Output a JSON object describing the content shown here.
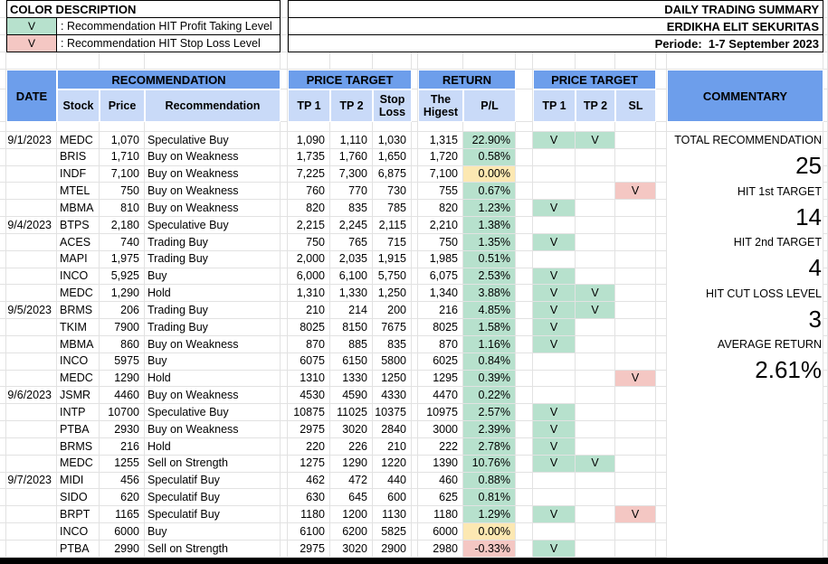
{
  "legend": {
    "title": "COLOR DESCRIPTION",
    "items": [
      {
        "mark": "V",
        "status": "profit",
        "label": ": Recommendation HIT Profit Taking Level"
      },
      {
        "mark": "V",
        "status": "stoploss",
        "label": ": Recommendation HIT Stop Loss Level"
      }
    ]
  },
  "titles": {
    "line1": "DAILY TRADING SUMMARY",
    "line2": "ERDIKHA ELIT SEKURITAS",
    "line3": "Periode:  1-7 September 2023"
  },
  "colors": {
    "header_blue": "#6d9eeb",
    "header_light_blue": "#c9daf8",
    "hit_green": "#b7e1cd",
    "neutral_yellow": "#fce8b2",
    "loss_red": "#f4c7c3",
    "gridline": "#e2e2e2"
  },
  "table": {
    "headers": {
      "date": "DATE",
      "recommendation_group": "RECOMMENDATION",
      "stock": "Stock",
      "price": "Price",
      "recommendation": "Recommendation",
      "price_target_group": "PRICE TARGET",
      "tp1": "TP 1",
      "tp2": "TP 2",
      "stop_loss": "Stop Loss",
      "return_group": "RETURN",
      "the_higest": "The Higest",
      "pl": "P/L",
      "hit_group": "PRICE TARGET",
      "hit_tp1": "TP 1",
      "hit_tp2": "TP 2",
      "hit_sl": "SL",
      "commentary": "COMMENTARY"
    },
    "rows": [
      {
        "date": "9/1/2023",
        "stock": "MEDC",
        "price": "1,070",
        "recommendation": "Speculative Buy",
        "tp1": "1,090",
        "tp2": "1,110",
        "stop_loss": "1,030",
        "highest": "1,315",
        "pl": "22.90%",
        "pl_status": "green",
        "hit_tp1": true,
        "hit_tp2": true,
        "hit_sl": false
      },
      {
        "date": "",
        "stock": "BRIS",
        "price": "1,710",
        "recommendation": "Buy on Weakness",
        "tp1": "1,735",
        "tp2": "1,760",
        "stop_loss": "1,650",
        "highest": "1,720",
        "pl": "0.58%",
        "pl_status": "green",
        "hit_tp1": false,
        "hit_tp2": false,
        "hit_sl": false
      },
      {
        "date": "",
        "stock": "INDF",
        "price": "7,100",
        "recommendation": "Buy on Weakness",
        "tp1": "7,225",
        "tp2": "7,300",
        "stop_loss": "6,875",
        "highest": "7,100",
        "pl": "0.00%",
        "pl_status": "yellow",
        "hit_tp1": false,
        "hit_tp2": false,
        "hit_sl": false
      },
      {
        "date": "",
        "stock": "MTEL",
        "price": "750",
        "recommendation": "Buy on Weakness",
        "tp1": "760",
        "tp2": "770",
        "stop_loss": "730",
        "highest": "755",
        "pl": "0.67%",
        "pl_status": "green",
        "hit_tp1": false,
        "hit_tp2": false,
        "hit_sl": true
      },
      {
        "date": "",
        "stock": "MBMA",
        "price": "810",
        "recommendation": "Buy on Weakness",
        "tp1": "820",
        "tp2": "835",
        "stop_loss": "785",
        "highest": "820",
        "pl": "1.23%",
        "pl_status": "green",
        "hit_tp1": true,
        "hit_tp2": false,
        "hit_sl": false
      },
      {
        "date": "9/4/2023",
        "stock": "BTPS",
        "price": "2,180",
        "recommendation": "Speculative Buy",
        "tp1": "2,215",
        "tp2": "2,245",
        "stop_loss": "2,115",
        "highest": "2,210",
        "pl": "1.38%",
        "pl_status": "green",
        "hit_tp1": false,
        "hit_tp2": false,
        "hit_sl": false
      },
      {
        "date": "",
        "stock": "ACES",
        "price": "740",
        "recommendation": "Trading Buy",
        "tp1": "750",
        "tp2": "765",
        "stop_loss": "715",
        "highest": "750",
        "pl": "1.35%",
        "pl_status": "green",
        "hit_tp1": true,
        "hit_tp2": false,
        "hit_sl": false
      },
      {
        "date": "",
        "stock": "MAPI",
        "price": "1,975",
        "recommendation": "Trading Buy",
        "tp1": "2,000",
        "tp2": "2,035",
        "stop_loss": "1,915",
        "highest": "1,985",
        "pl": "0.51%",
        "pl_status": "green",
        "hit_tp1": false,
        "hit_tp2": false,
        "hit_sl": false
      },
      {
        "date": "",
        "stock": "INCO",
        "price": "5,925",
        "recommendation": "Buy",
        "tp1": "6,000",
        "tp2": "6,100",
        "stop_loss": "5,750",
        "highest": "6,075",
        "pl": "2.53%",
        "pl_status": "green",
        "hit_tp1": true,
        "hit_tp2": false,
        "hit_sl": false
      },
      {
        "date": "",
        "stock": "MEDC",
        "price": "1,290",
        "recommendation": "Hold",
        "tp1": "1,310",
        "tp2": "1,330",
        "stop_loss": "1,250",
        "highest": "1,340",
        "pl": "3.88%",
        "pl_status": "green",
        "hit_tp1": true,
        "hit_tp2": true,
        "hit_sl": false
      },
      {
        "date": "9/5/2023",
        "stock": "BRMS",
        "price": "206",
        "recommendation": "Trading Buy",
        "tp1": "210",
        "tp2": "214",
        "stop_loss": "200",
        "highest": "216",
        "pl": "4.85%",
        "pl_status": "green",
        "hit_tp1": true,
        "hit_tp2": true,
        "hit_sl": false
      },
      {
        "date": "",
        "stock": "TKIM",
        "price": "7900",
        "recommendation": "Trading Buy",
        "tp1": "8025",
        "tp2": "8150",
        "stop_loss": "7675",
        "highest": "8025",
        "pl": "1.58%",
        "pl_status": "green",
        "hit_tp1": true,
        "hit_tp2": false,
        "hit_sl": false
      },
      {
        "date": "",
        "stock": "MBMA",
        "price": "860",
        "recommendation": "Buy on Weakness",
        "tp1": "870",
        "tp2": "885",
        "stop_loss": "835",
        "highest": "870",
        "pl": "1.16%",
        "pl_status": "green",
        "hit_tp1": true,
        "hit_tp2": false,
        "hit_sl": false
      },
      {
        "date": "",
        "stock": "INCO",
        "price": "5975",
        "recommendation": "Buy",
        "tp1": "6075",
        "tp2": "6150",
        "stop_loss": "5800",
        "highest": "6025",
        "pl": "0.84%",
        "pl_status": "green",
        "hit_tp1": false,
        "hit_tp2": false,
        "hit_sl": false
      },
      {
        "date": "",
        "stock": "MEDC",
        "price": "1290",
        "recommendation": "Hold",
        "tp1": "1310",
        "tp2": "1330",
        "stop_loss": "1250",
        "highest": "1295",
        "pl": "0.39%",
        "pl_status": "green",
        "hit_tp1": false,
        "hit_tp2": false,
        "hit_sl": true
      },
      {
        "date": "9/6/2023",
        "stock": "JSMR",
        "price": "4460",
        "recommendation": "Buy on Weakness",
        "tp1": "4530",
        "tp2": "4590",
        "stop_loss": "4330",
        "highest": "4470",
        "pl": "0.22%",
        "pl_status": "green",
        "hit_tp1": false,
        "hit_tp2": false,
        "hit_sl": false
      },
      {
        "date": "",
        "stock": "INTP",
        "price": "10700",
        "recommendation": "Speculative Buy",
        "tp1": "10875",
        "tp2": "11025",
        "stop_loss": "10375",
        "highest": "10975",
        "pl": "2.57%",
        "pl_status": "green",
        "hit_tp1": true,
        "hit_tp2": false,
        "hit_sl": false
      },
      {
        "date": "",
        "stock": "PTBA",
        "price": "2930",
        "recommendation": "Buy on Weakness",
        "tp1": "2975",
        "tp2": "3020",
        "stop_loss": "2840",
        "highest": "3000",
        "pl": "2.39%",
        "pl_status": "green",
        "hit_tp1": true,
        "hit_tp2": false,
        "hit_sl": false
      },
      {
        "date": "",
        "stock": "BRMS",
        "price": "216",
        "recommendation": "Hold",
        "tp1": "220",
        "tp2": "226",
        "stop_loss": "210",
        "highest": "222",
        "pl": "2.78%",
        "pl_status": "green",
        "hit_tp1": true,
        "hit_tp2": false,
        "hit_sl": false
      },
      {
        "date": "",
        "stock": "MEDC",
        "price": "1255",
        "recommendation": "Sell on Strength",
        "tp1": "1275",
        "tp2": "1290",
        "stop_loss": "1220",
        "highest": "1390",
        "pl": "10.76%",
        "pl_status": "green",
        "hit_tp1": true,
        "hit_tp2": true,
        "hit_sl": false
      },
      {
        "date": "9/7/2023",
        "stock": "MIDI",
        "price": "456",
        "recommendation": "Speculatif Buy",
        "tp1": "462",
        "tp2": "472",
        "stop_loss": "440",
        "highest": "460",
        "pl": "0.88%",
        "pl_status": "green",
        "hit_tp1": false,
        "hit_tp2": false,
        "hit_sl": false
      },
      {
        "date": "",
        "stock": "SIDO",
        "price": "620",
        "recommendation": "Speculatif Buy",
        "tp1": "630",
        "tp2": "645",
        "stop_loss": "600",
        "highest": "625",
        "pl": "0.81%",
        "pl_status": "green",
        "hit_tp1": false,
        "hit_tp2": false,
        "hit_sl": false
      },
      {
        "date": "",
        "stock": "BRPT",
        "price": "1165",
        "recommendation": "Speculatif Buy",
        "tp1": "1180",
        "tp2": "1200",
        "stop_loss": "1130",
        "highest": "1180",
        "pl": "1.29%",
        "pl_status": "green",
        "hit_tp1": true,
        "hit_tp2": false,
        "hit_sl": true
      },
      {
        "date": "",
        "stock": "INCO",
        "price": "6000",
        "recommendation": "Buy",
        "tp1": "6100",
        "tp2": "6200",
        "stop_loss": "5825",
        "highest": "6000",
        "pl": "0.00%",
        "pl_status": "yellow",
        "hit_tp1": false,
        "hit_tp2": false,
        "hit_sl": false
      },
      {
        "date": "",
        "stock": "PTBA",
        "price": "2990",
        "recommendation": "Sell on Strength",
        "tp1": "2975",
        "tp2": "3020",
        "stop_loss": "2900",
        "highest": "2980",
        "pl": "-0.33%",
        "pl_status": "red",
        "hit_tp1": true,
        "hit_tp2": false,
        "hit_sl": false
      }
    ]
  },
  "summary": [
    {
      "label": "TOTAL RECOMMENDATION",
      "value": "25"
    },
    {
      "label": "HIT 1st TARGET",
      "value": "14"
    },
    {
      "label": "HIT 2nd TARGET",
      "value": "4"
    },
    {
      "label": "HIT CUT LOSS LEVEL",
      "value": "3"
    },
    {
      "label": "AVERAGE RETURN",
      "value": "2.61%"
    }
  ]
}
